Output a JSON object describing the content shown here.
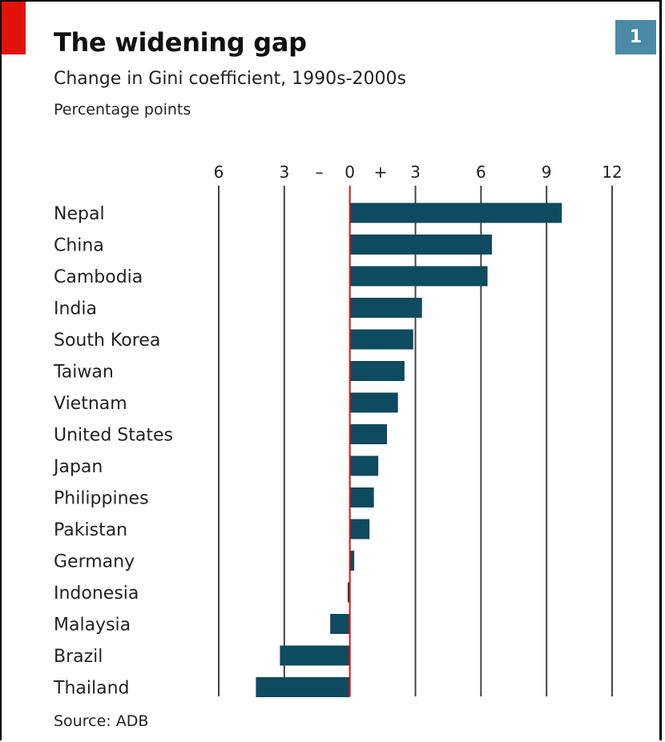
{
  "badge": "1",
  "source": "Source: ADB",
  "colors": {
    "bar": "#0e4a60",
    "zero_line": "#e3120b",
    "grid": "#444444",
    "accent": "#e3120b",
    "badge": "#4a8aa6"
  },
  "chart_data": {
    "type": "bar",
    "orientation": "horizontal",
    "title": "The widening gap",
    "subtitle": "Change in Gini coefficient, 1990s-2000s",
    "units": "Percentage points",
    "xlim": [
      -6,
      12
    ],
    "ticks": [
      -6,
      -3,
      0,
      3,
      6,
      9,
      12
    ],
    "tick_labels": [
      "6",
      "3",
      "0",
      "3",
      "6",
      "9",
      "12"
    ],
    "sign_labels": [
      "–",
      "+"
    ],
    "grid": true,
    "categories": [
      "Nepal",
      "China",
      "Cambodia",
      "India",
      "South Korea",
      "Taiwan",
      "Vietnam",
      "United States",
      "Japan",
      "Philippines",
      "Pakistan",
      "Germany",
      "Indonesia",
      "Malaysia",
      "Brazil",
      "Thailand"
    ],
    "values": [
      9.7,
      6.5,
      6.3,
      3.3,
      2.9,
      2.5,
      2.2,
      1.7,
      1.3,
      1.1,
      0.9,
      0.2,
      -0.1,
      -0.9,
      -3.2,
      -4.3
    ]
  }
}
